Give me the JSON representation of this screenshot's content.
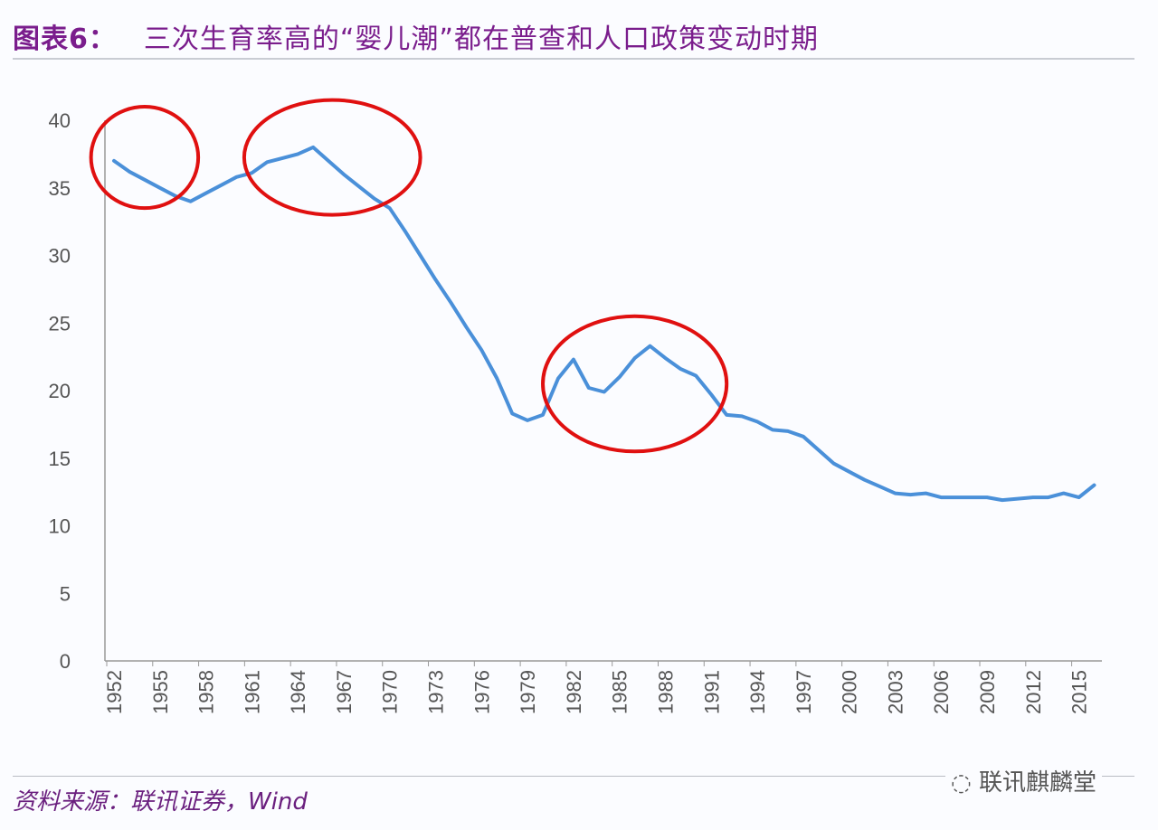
{
  "title": {
    "label": "图表6：",
    "text": "三次生育率高的“婴儿潮”都在普查和人口政策变动时期"
  },
  "source": "资料来源：联讯证券，Wind",
  "watermark": "联讯麒麟堂",
  "chart_data": {
    "type": "line",
    "title": "三次生育率高的“婴儿潮”都在普查和人口政策变动时期",
    "xlabel": "",
    "ylabel": "",
    "ylim": [
      0,
      40
    ],
    "yticks": [
      0,
      5,
      10,
      15,
      20,
      25,
      30,
      35,
      40
    ],
    "xticks": [
      1952,
      1955,
      1958,
      1961,
      1964,
      1967,
      1970,
      1973,
      1976,
      1979,
      1982,
      1985,
      1988,
      1991,
      1994,
      1997,
      2000,
      2003,
      2006,
      2009,
      2012,
      2015
    ],
    "grid": false,
    "line_color": "#4a90d9",
    "annotation_color": "#e01010",
    "annotations": [
      {
        "type": "ellipse",
        "x_range": [
          1950.5,
          1957.5
        ],
        "y_range": [
          33.5,
          41
        ]
      },
      {
        "type": "ellipse",
        "x_range": [
          1960.5,
          1972
        ],
        "y_range": [
          33,
          41.5
        ]
      },
      {
        "type": "ellipse",
        "x_range": [
          1980,
          1992
        ],
        "y_range": [
          15.5,
          25.5
        ]
      }
    ],
    "x": [
      1952,
      1953,
      1954,
      1955,
      1956,
      1957,
      1958,
      1959,
      1960,
      1961,
      1962,
      1963,
      1964,
      1965,
      1966,
      1967,
      1968,
      1969,
      1970,
      1971,
      1972,
      1973,
      1974,
      1975,
      1976,
      1977,
      1978,
      1979,
      1980,
      1981,
      1982,
      1983,
      1984,
      1985,
      1986,
      1987,
      1988,
      1989,
      1990,
      1991,
      1992,
      1993,
      1994,
      1995,
      1996,
      1997,
      1998,
      1999,
      2000,
      2001,
      2002,
      2003,
      2004,
      2005,
      2006,
      2007,
      2008,
      2009,
      2010,
      2011,
      2012,
      2013,
      2014,
      2015,
      2016
    ],
    "values": [
      37.0,
      36.2,
      35.6,
      35.0,
      34.4,
      34.0,
      34.6,
      35.2,
      35.8,
      36.1,
      36.9,
      37.2,
      37.5,
      38.0,
      37.0,
      36.0,
      35.1,
      34.2,
      33.5,
      31.8,
      30.0,
      28.2,
      26.5,
      24.7,
      23.0,
      20.9,
      18.3,
      17.8,
      18.2,
      20.9,
      22.3,
      20.2,
      19.9,
      21.0,
      22.4,
      23.3,
      22.4,
      21.6,
      21.1,
      19.7,
      18.2,
      18.1,
      17.7,
      17.1,
      17.0,
      16.6,
      15.6,
      14.6,
      14.0,
      13.4,
      12.9,
      12.4,
      12.3,
      12.4,
      12.1,
      12.1,
      12.1,
      12.1,
      11.9,
      12.0,
      12.1,
      12.1,
      12.4,
      12.1,
      13.0
    ]
  }
}
